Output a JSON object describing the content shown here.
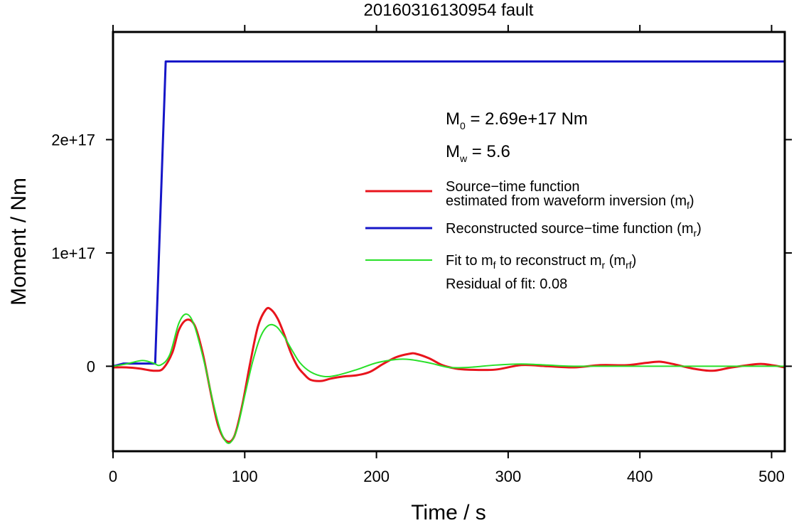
{
  "chart_data": {
    "type": "line",
    "title": "20160316130954 fault",
    "xlabel": "Time / s",
    "ylabel": "Moment / Nm",
    "xlim": [
      0,
      510
    ],
    "ylim": [
      -7.5e+16,
      2.95e+17
    ],
    "x_ticks": [
      0,
      100,
      200,
      300,
      400,
      500
    ],
    "x_tick_labels": [
      "0",
      "100",
      "200",
      "300",
      "400",
      "500"
    ],
    "y_ticks": [
      0,
      1e+17,
      2e+17
    ],
    "y_tick_labels": [
      "0",
      "1e+17",
      "2e+17"
    ],
    "grid": false,
    "legend_position": "right",
    "annotations": {
      "m0_main": "M",
      "m0_sub": "0",
      "m0_rest": " = 2.69e+17 Nm",
      "mw_main": "M",
      "mw_sub": "w",
      "mw_rest": " = 5.6",
      "residual": "Residual of fit: 0.08"
    },
    "legend": [
      {
        "color": "#e8141c",
        "width": 3,
        "lines": [
          [
            {
              "t": "Source−time function"
            }
          ],
          [
            {
              "t": "estimated from waveform inversion (m"
            },
            {
              "t": "f",
              "sub": true
            },
            {
              "t": ")"
            }
          ]
        ]
      },
      {
        "color": "#1616c8",
        "width": 3,
        "lines": [
          [
            {
              "t": "Reconstructed source−time function (m"
            },
            {
              "t": "r",
              "sub": true
            },
            {
              "t": ")"
            }
          ]
        ]
      },
      {
        "color": "#28e028",
        "width": 2,
        "lines": [
          [
            {
              "t": "Fit to m"
            },
            {
              "t": "f",
              "sub": true
            },
            {
              "t": " to reconstruct m"
            },
            {
              "t": "r",
              "sub": true
            },
            {
              "t": " (m"
            },
            {
              "t": "rf",
              "sub": true
            },
            {
              "t": ")"
            }
          ]
        ]
      }
    ],
    "series": [
      {
        "name": "Reconstructed source−time function (m_r)",
        "color": "#1616c8",
        "width": 3,
        "x": [
          0,
          8,
          32,
          40,
          510
        ],
        "y": [
          0,
          2400000000000000.0,
          2400000000000000.0,
          2.69e+17,
          2.69e+17
        ]
      },
      {
        "name": "Source−time function estimated from waveform inversion (m_f)",
        "color": "#e8141c",
        "width": 3,
        "x": [
          0,
          10,
          20,
          25,
          32,
          38,
          45,
          50,
          56,
          62,
          68,
          75,
          80,
          86,
          92,
          98,
          104,
          110,
          116,
          120,
          125,
          130,
          135,
          140,
          145,
          150,
          158,
          165,
          175,
          185,
          195,
          205,
          215,
          225,
          230,
          240,
          250,
          260,
          270,
          290,
          310,
          330,
          350,
          370,
          390,
          405,
          415,
          425,
          440,
          455,
          470,
          490,
          500,
          510
        ],
        "y": [
          -1000000000000000.0,
          -1000000000000000.0,
          -2000000000000000.0,
          -3000000000000000.0,
          -4000000000000000.0,
          -2000000000000000.0,
          1.2e+16,
          3.2e+16,
          4.1e+16,
          3.6e+16,
          1.2e+16,
          -2.8e+16,
          -5.3e+16,
          -6.6e+16,
          -6.2e+16,
          -3.5e+16,
          2000000000000000.0,
          3.5e+16,
          5e+16,
          5e+16,
          4.2e+16,
          2.8e+16,
          1.2e+16,
          0,
          -7000000000000000.0,
          -1.2e+16,
          -1.3e+16,
          -1.1e+16,
          -9000000000000000.0,
          -8000000000000000.0,
          -5000000000000000.0,
          2000000000000000.0,
          8000000000000000.0,
          1.1e+16,
          1.1e+16,
          7000000000000000.0,
          1000000000000000.0,
          -2000000000000000.0,
          -3000000000000000.0,
          -3000000000000000.0,
          1000000000000000.0,
          0,
          -1000000000000000.0,
          1000000000000000.0,
          1000000000000000.0,
          3000000000000000.0,
          4000000000000000.0,
          2000000000000000.0,
          -2000000000000000.0,
          -4000000000000000.0,
          -1000000000000000.0,
          2000000000000000.0,
          1000000000000000.0,
          -1000000000000000.0
        ]
      },
      {
        "name": "Fit to m_f to reconstruct m_r (m_rf)",
        "color": "#28e028",
        "width": 2,
        "x": [
          0,
          10,
          22,
          30,
          36,
          43,
          50,
          56,
          62,
          70,
          76,
          82,
          88,
          94,
          100,
          106,
          112,
          118,
          124,
          130,
          136,
          142,
          150,
          160,
          170,
          185,
          200,
          215,
          225,
          240,
          255,
          270,
          290,
          310,
          330,
          350,
          400,
          510
        ],
        "y": [
          0,
          2000000000000000.0,
          5000000000000000.0,
          3000000000000000.0,
          1000000000000000.0,
          1e+16,
          3.8e+16,
          4.6e+16,
          3.5e+16,
          0,
          -3.2e+16,
          -5.8e+16,
          -6.8e+16,
          -5.6e+16,
          -2.6e+16,
          4000000000000000.0,
          2.6e+16,
          3.6e+16,
          3.5e+16,
          2.6e+16,
          1.4e+16,
          3000000000000000.0,
          -5000000000000000.0,
          -9000000000000000.0,
          -8000000000000000.0,
          -3000000000000000.0,
          3000000000000000.0,
          6000000000000000.0,
          6000000000000000.0,
          3000000000000000.0,
          -1000000000000000.0,
          -1000000000000000.0,
          1000000000000000.0,
          2000000000000000.0,
          1000000000000000.0,
          0,
          0,
          0
        ]
      }
    ]
  }
}
